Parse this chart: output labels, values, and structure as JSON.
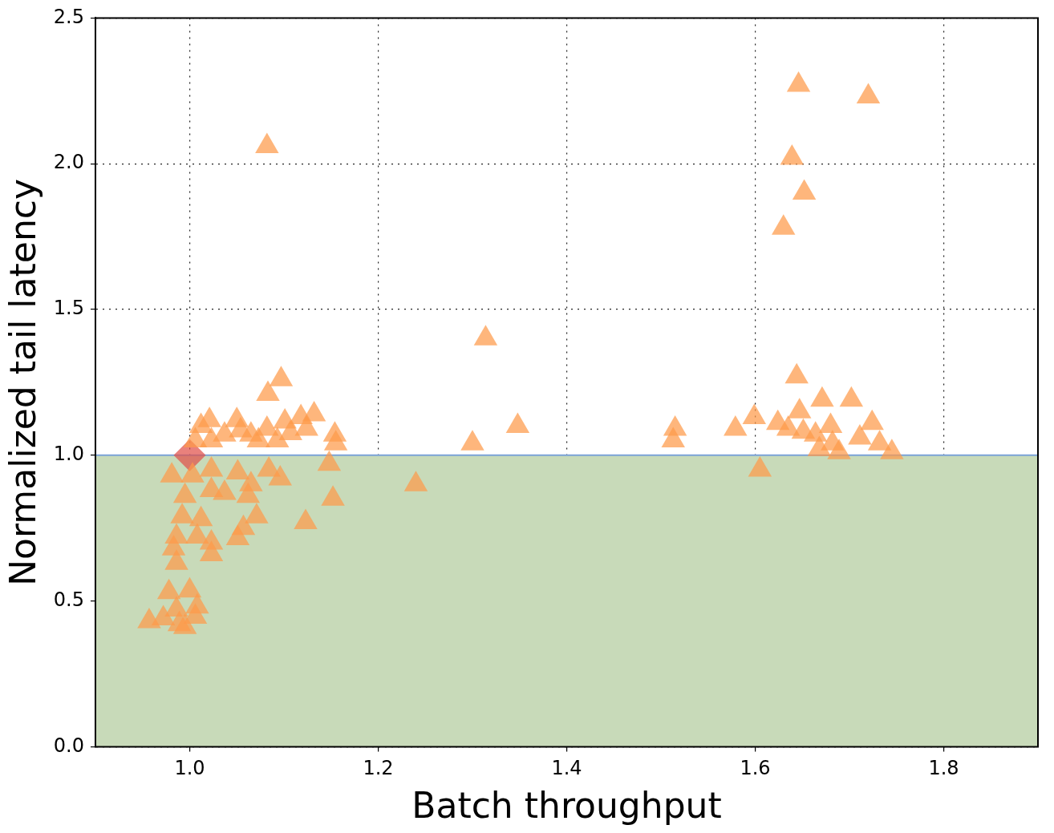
{
  "chart_data": {
    "type": "scatter",
    "xlabel": "Batch throughput",
    "ylabel": "Normalized tail latency",
    "xlim": [
      0.9,
      1.9
    ],
    "ylim": [
      0,
      2.5
    ],
    "xticks": [
      {
        "value": 1,
        "label": "1.0"
      },
      1.2,
      1.4,
      1.6,
      1.8
    ],
    "yticks": [
      {
        "value": 0,
        "label": "0.0"
      },
      0.5,
      {
        "value": 1,
        "label": "1.0"
      },
      1.5,
      {
        "value": 2,
        "label": "2.0"
      },
      2.5
    ],
    "grid": true,
    "legend": false,
    "bands": [
      {
        "axis": "y",
        "from": 0,
        "to": 1,
        "color": "#c8dab9"
      }
    ],
    "ref_lines": [
      {
        "axis": "y",
        "value": 1,
        "color": "#7ba3d9"
      }
    ],
    "series": [
      {
        "marker": "triangle",
        "color": "#fd9a4a",
        "x": [
          1.082,
          1.646,
          1.72,
          1.639,
          1.652,
          1.63,
          1.314,
          1.348,
          1.3,
          1.24,
          1.515,
          1.513,
          1.097,
          1.083,
          1.123,
          1.152,
          1.148,
          1.154,
          1.155,
          1.132,
          1.644,
          1.579,
          1.599,
          1.605,
          1.624,
          1.671,
          1.702,
          1.724,
          1.745,
          1.647,
          1.651,
          1.664,
          1.68,
          1.668,
          1.689,
          1.711,
          1.732,
          1.635,
          1.682,
          1.012,
          1.021,
          1.05,
          1.054,
          1.037,
          1.065,
          1.082,
          1.101,
          1.118,
          1.124,
          1.107,
          1.023,
          1.073,
          1.093,
          1.006,
          0.981,
          1.003,
          1.023,
          1.051,
          1.084,
          1.096,
          1.065,
          1.037,
          1.062,
          1.023,
          0.995,
          1.071,
          1.057,
          1.051,
          0.992,
          1.012,
          0.986,
          1.008,
          1.023,
          0.983,
          1.023,
          0.986,
          0.978,
          1.0,
          0.957,
          0.972,
          0.989,
          1.006,
          1.008,
          0.986,
          0.995
        ],
        "values": [
          2.06,
          2.27,
          2.23,
          2.02,
          1.9,
          1.78,
          1.4,
          1.1,
          1.04,
          0.9,
          1.09,
          1.05,
          1.26,
          1.21,
          0.77,
          0.85,
          0.97,
          1.07,
          1.04,
          1.14,
          1.27,
          1.09,
          1.13,
          0.95,
          1.11,
          1.19,
          1.19,
          1.11,
          1.01,
          1.15,
          1.08,
          1.07,
          1.1,
          1.02,
          1.01,
          1.06,
          1.04,
          1.09,
          1.04,
          1.1,
          1.12,
          1.12,
          1.085,
          1.07,
          1.07,
          1.09,
          1.115,
          1.13,
          1.09,
          1.075,
          1.05,
          1.05,
          1.05,
          1.05,
          0.93,
          0.93,
          0.95,
          0.94,
          0.95,
          0.92,
          0.9,
          0.87,
          0.86,
          0.88,
          0.86,
          0.79,
          0.75,
          0.715,
          0.79,
          0.78,
          0.72,
          0.72,
          0.7,
          0.68,
          0.66,
          0.63,
          0.53,
          0.535,
          0.43,
          0.44,
          0.42,
          0.445,
          0.48,
          0.47,
          0.41
        ]
      },
      {
        "marker": "diamond",
        "color": "#e0504a",
        "x": [
          1.0
        ],
        "values": [
          1.0
        ]
      }
    ]
  }
}
